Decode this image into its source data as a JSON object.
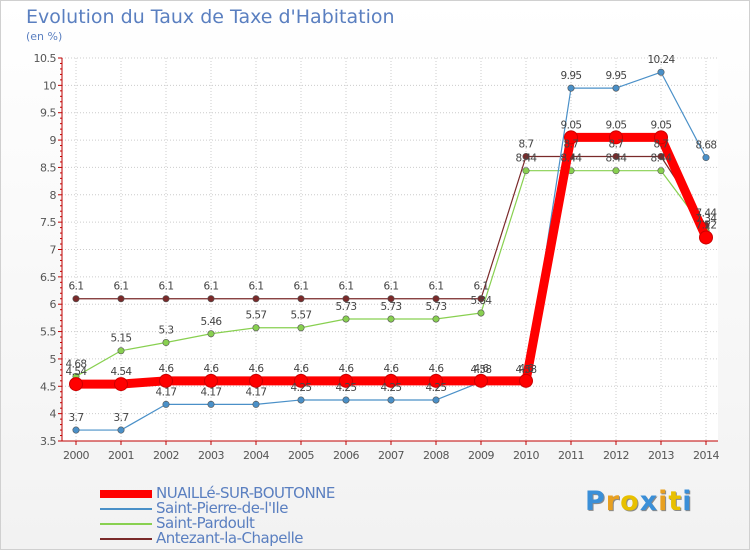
{
  "chart_data": {
    "type": "line",
    "title": "Evolution du Taux de Taxe d'Habitation",
    "subtitle": "(en %)",
    "x": [
      "2000",
      "2001",
      "2002",
      "2003",
      "2004",
      "2005",
      "2006",
      "2007",
      "2008",
      "2009",
      "2010",
      "2011",
      "2012",
      "2013",
      "2014"
    ],
    "ylim": [
      3.5,
      10.5
    ],
    "yticks": [
      "3.5",
      "4",
      "4.5",
      "5",
      "5.5",
      "6",
      "6.5",
      "7",
      "7.5",
      "8",
      "8.5",
      "9",
      "9.5",
      "10",
      "10.5"
    ],
    "grid": true,
    "legend_position": "bottom-left",
    "series": [
      {
        "name": "NUAILLé-SUR-BOUTONNE",
        "color": "#ff0000",
        "values": [
          4.54,
          4.54,
          4.6,
          4.6,
          4.6,
          4.6,
          4.6,
          4.6,
          4.6,
          4.6,
          4.6,
          9.05,
          9.05,
          9.05,
          7.22
        ],
        "labels": [
          "4.54",
          "4.54",
          "4.6",
          "4.6",
          "4.6",
          "4.6",
          "4.6",
          "4.6",
          "4.6",
          "4.6",
          "4.6",
          "9.05",
          "9.05",
          "9.05",
          "7.22"
        ]
      },
      {
        "name": "Saint-Pierre-de-l'Ile",
        "color": "#4a90c8",
        "values": [
          3.7,
          3.7,
          4.17,
          4.17,
          4.17,
          4.25,
          4.25,
          4.25,
          4.25,
          4.58,
          4.58,
          9.95,
          9.95,
          10.24,
          8.68
        ],
        "labels": [
          "3.7",
          "3.7",
          "4.17",
          "4.17",
          "4.17",
          "4.25",
          "4.25",
          "4.25",
          "4.25",
          "4.58",
          "4.58",
          "9.95",
          "9.95",
          "10.24",
          "8.68"
        ]
      },
      {
        "name": "Saint-Pardoult",
        "color": "#88d050",
        "values": [
          4.68,
          5.15,
          5.3,
          5.46,
          5.57,
          5.57,
          5.73,
          5.73,
          5.73,
          5.84,
          8.44,
          8.44,
          8.44,
          8.44,
          7.34
        ],
        "labels": [
          "4.68",
          "5.15",
          "5.3",
          "5.46",
          "5.57",
          "5.57",
          "5.73",
          "5.73",
          "5.73",
          "5.84",
          "8.44",
          "8.44",
          "8.44",
          "8.44",
          "7.34"
        ]
      },
      {
        "name": "Antezant-la-Chapelle",
        "color": "#7a2a2a",
        "values": [
          6.1,
          6.1,
          6.1,
          6.1,
          6.1,
          6.1,
          6.1,
          6.1,
          6.1,
          6.1,
          8.7,
          8.7,
          8.7,
          8.7,
          7.44
        ],
        "labels": [
          "6.1",
          "6.1",
          "6.1",
          "6.1",
          "6.1",
          "6.1",
          "6.1",
          "6.1",
          "6.1",
          "6.1",
          "8.7",
          "8.7",
          "8.7",
          "8.7",
          "7.44"
        ]
      }
    ]
  },
  "logo": {
    "letters": [
      "P",
      "r",
      "o",
      "x",
      "i",
      "t",
      "i"
    ],
    "colors": [
      "#3a8fd8",
      "#e8a020",
      "#e8c000",
      "#3a8fd8",
      "#e8a020",
      "#e8c000",
      "#3a8fd8"
    ]
  }
}
